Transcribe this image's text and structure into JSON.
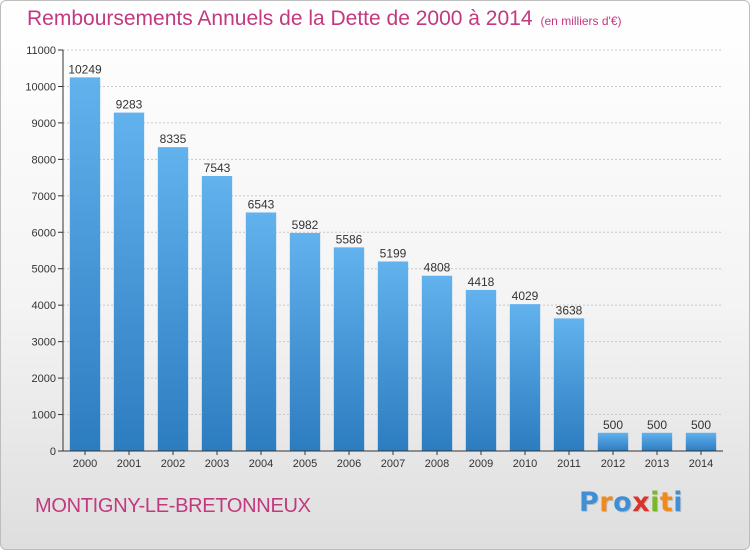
{
  "header": {
    "title": "Remboursements Annuels de la Dette de 2000 à 2014",
    "unit": "(en milliers d'€)"
  },
  "footer": {
    "commune": "MONTIGNY-LE-BRETONNEUX",
    "logo_letters": [
      "P",
      "r",
      "o",
      "x",
      "i",
      "t",
      "i"
    ],
    "logo_colors": [
      "#3f8fd6",
      "#f08a1c",
      "#3f8fd6",
      "#d9342b",
      "#79b829",
      "#f08a1c",
      "#3f8fd6"
    ]
  },
  "colors": {
    "bar_top": "#62b2ee",
    "bar_bottom": "#2c7cc0",
    "accent_text": "#c2397f",
    "grid": "#c8c8c8",
    "axis": "#333333"
  },
  "chart_data": {
    "type": "bar",
    "title": "Remboursements Annuels de la Dette de 2000 à 2014",
    "categories": [
      "2000",
      "2001",
      "2002",
      "2003",
      "2004",
      "2005",
      "2006",
      "2007",
      "2008",
      "2009",
      "2010",
      "2011",
      "2012",
      "2013",
      "2014"
    ],
    "values": [
      10249,
      9283,
      8335,
      7543,
      6543,
      5982,
      5586,
      5199,
      4808,
      4418,
      4029,
      3638,
      500,
      500,
      500
    ],
    "yticks": [
      0,
      1000,
      2000,
      3000,
      4000,
      5000,
      6000,
      7000,
      8000,
      9000,
      10000,
      11000
    ],
    "ylim": [
      0,
      11000
    ],
    "grid": true,
    "data_labels": true
  }
}
